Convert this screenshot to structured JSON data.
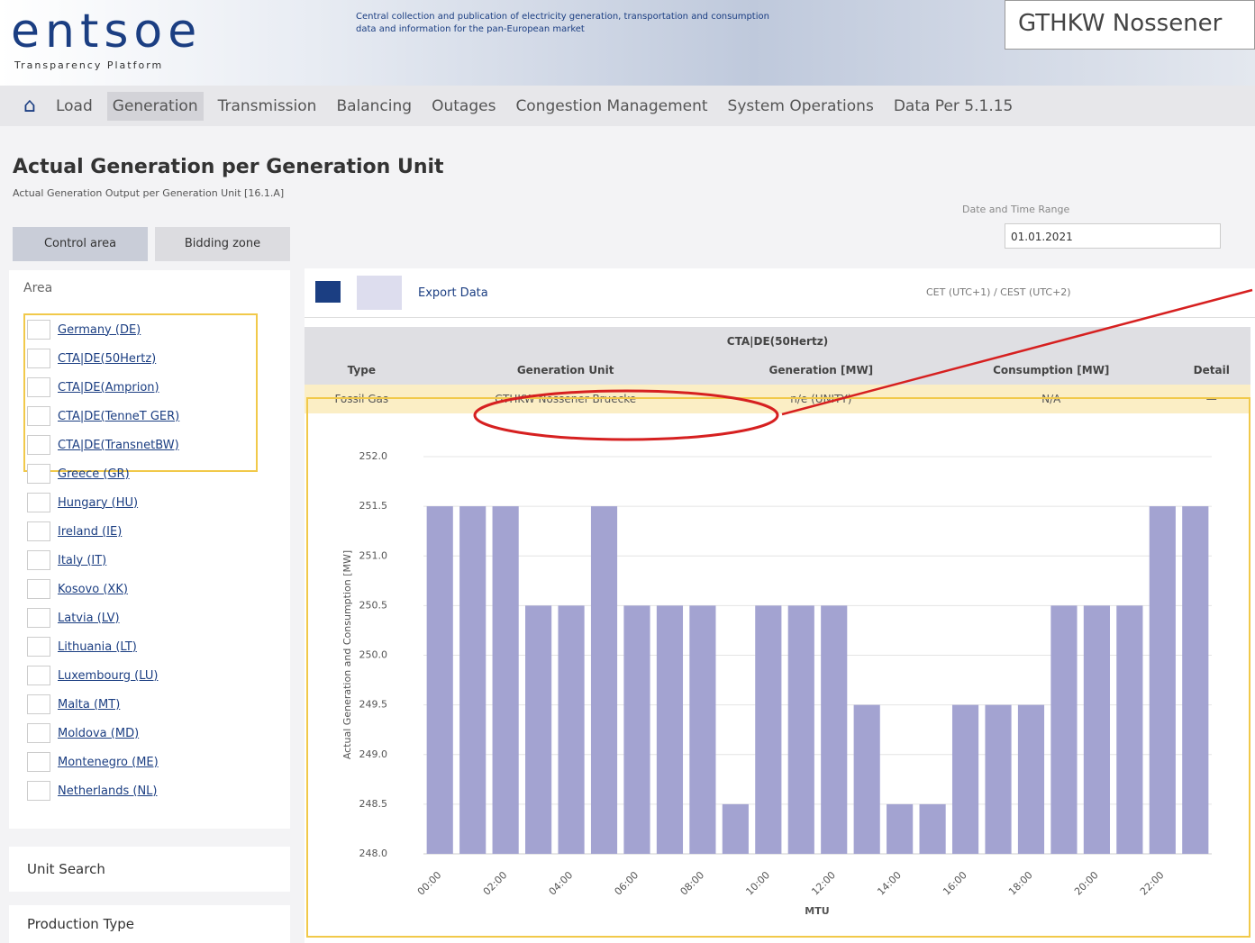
{
  "header": {
    "logo": "entsoe",
    "logo_sub": "Transparency Platform",
    "tagline": "Central collection and publication of electricity generation, transportation and consumption data and information for the pan-European market",
    "callout": "GTHKW Nossener"
  },
  "nav": [
    "Load",
    "Generation",
    "Transmission",
    "Balancing",
    "Outages",
    "Congestion Management",
    "System Operations",
    "Data Per 5.1.15"
  ],
  "page": {
    "title": "Actual Generation per Generation Unit",
    "subtitle": "Actual Generation Output per Generation Unit [16.1.A]",
    "tabs": [
      "Control area",
      "Bidding zone"
    ],
    "date_label": "Date and Time Range",
    "date": "01.01.2021"
  },
  "sidebar": {
    "heading": "Area",
    "items": [
      "Germany (DE)",
      "CTA|DE(50Hertz)",
      "CTA|DE(Amprion)",
      "CTA|DE(TenneT GER)",
      "CTA|DE(TransnetBW)",
      "Greece (GR)",
      "Hungary (HU)",
      "Ireland (IE)",
      "Italy (IT)",
      "Kosovo (XK)",
      "Latvia (LV)",
      "Lithuania (LT)",
      "Luxembourg (LU)",
      "Malta (MT)",
      "Moldova (MD)",
      "Montenegro (ME)",
      "Netherlands (NL)"
    ],
    "sections": [
      "Unit Search",
      "Production Type"
    ]
  },
  "toolbar": {
    "export": "Export Data",
    "timezone": "CET (UTC+1) / CEST (UTC+2)"
  },
  "table": {
    "group": "CTA|DE(50Hertz)",
    "headers": [
      "Type",
      "Generation Unit",
      "Generation [MW]",
      "Consumption [MW]",
      "Detail"
    ],
    "row": [
      "Fossil Gas",
      "GTHKW Nossener Bruecke",
      "n/e (UNITY)",
      "N/A",
      "—"
    ]
  },
  "chart_data": {
    "type": "bar",
    "y_label": "Actual Generation and Consumption [MW]",
    "x_label": "MTU",
    "color": "#a3a3d1",
    "categories": [
      "00:00",
      null,
      "02:00",
      null,
      "04:00",
      null,
      "06:00",
      null,
      "08:00",
      null,
      "10:00",
      null,
      "12:00",
      null,
      "14:00",
      null,
      "16:00",
      null,
      "18:00",
      null,
      "20:00",
      null,
      "22:00",
      null
    ],
    "values": [
      251.5,
      251.5,
      251.5,
      250.5,
      250.5,
      251.5,
      250.5,
      250.5,
      250.5,
      248.5,
      250.5,
      250.5,
      250.5,
      249.5,
      248.5,
      248.5,
      249.5,
      249.5,
      249.5,
      250.5,
      250.5,
      250.5,
      251.5,
      251.5
    ],
    "ylim": [
      248,
      252
    ],
    "yticks": [
      {
        "value": 248,
        "label": "248.0"
      },
      248.5,
      {
        "value": 249,
        "label": "249.0"
      },
      249.5,
      {
        "value": 250,
        "label": "250.0"
      },
      250.5,
      {
        "value": 251,
        "label": "251.0"
      },
      251.5,
      {
        "value": 252,
        "label": "252.0"
      }
    ],
    "grid": true
  }
}
